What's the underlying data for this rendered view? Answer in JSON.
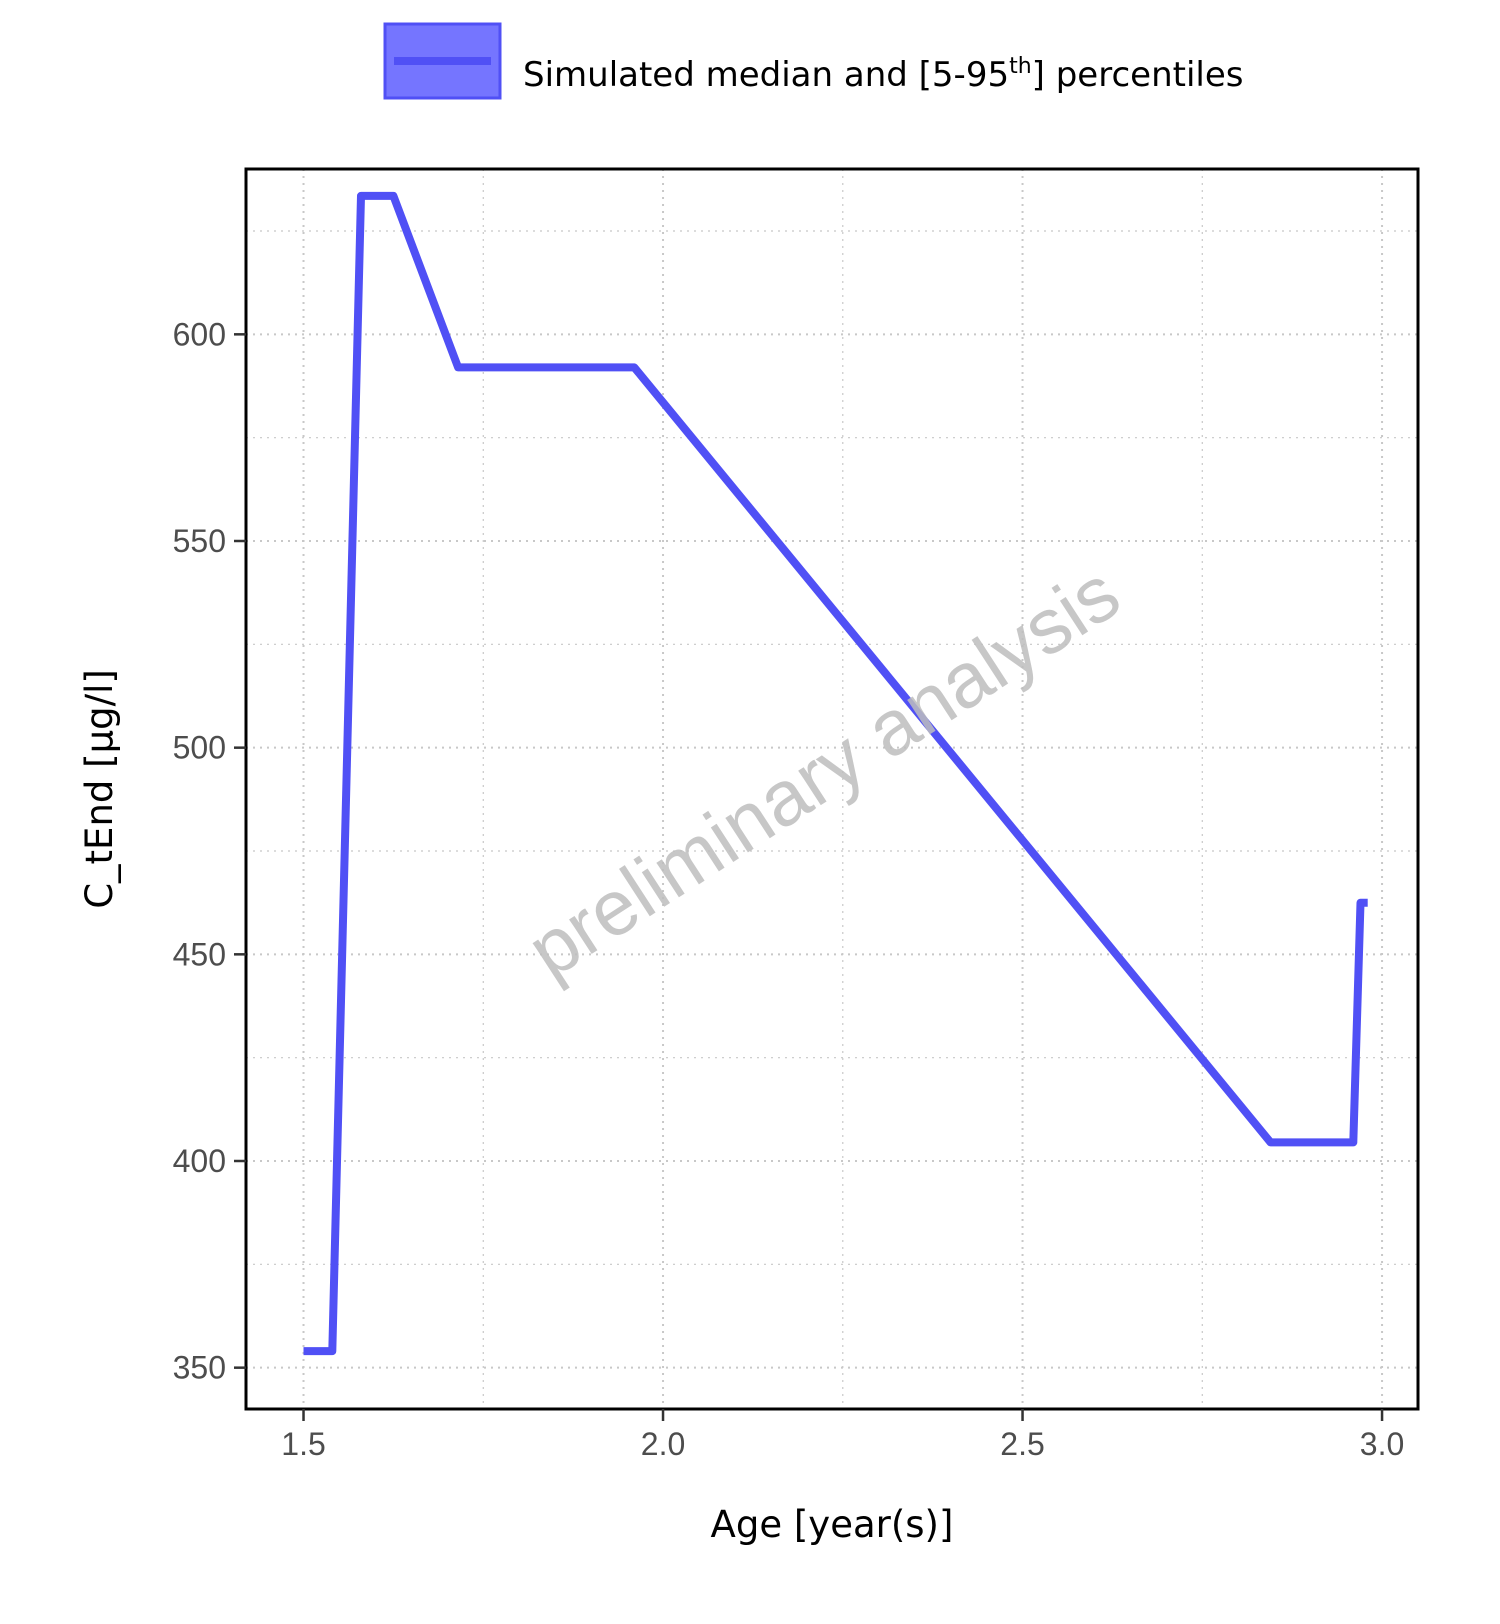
{
  "legend": {
    "label": "Simulated median and [5-95",
    "superscript": "th",
    "label_end": "] percentiles"
  },
  "watermark": "preliminary analysis",
  "colors": {
    "series": "#5050f5",
    "ribbon": "#7575ff",
    "axis": "#000000",
    "grid": "#c8c8c8",
    "watermark": "#bdbdbd"
  },
  "chart_data": {
    "type": "line",
    "xlabel": "Age [year(s)]",
    "ylabel": "C_tEnd [µg/l]",
    "xlim": [
      1.42,
      3.05
    ],
    "ylim": [
      340,
      640
    ],
    "xticks": [
      1.5,
      2.0,
      2.5,
      3.0
    ],
    "xtick_labels": [
      "1.5",
      "2.0",
      "2.5",
      "3.0"
    ],
    "yticks": [
      350,
      400,
      450,
      500,
      550,
      600
    ],
    "ytick_labels": [
      "350",
      "400",
      "450",
      "500",
      "550",
      "600"
    ],
    "grid": true,
    "legend_position": "top",
    "series": [
      {
        "name": "Simulated median and [5-95th] percentiles",
        "x": [
          1.5,
          1.54,
          1.58,
          1.625,
          1.715,
          1.96,
          2.845,
          2.96,
          2.97,
          2.98
        ],
        "y": [
          354,
          354,
          633.5,
          633.5,
          592,
          592,
          404.5,
          404.5,
          462.5,
          462.5
        ]
      }
    ]
  }
}
